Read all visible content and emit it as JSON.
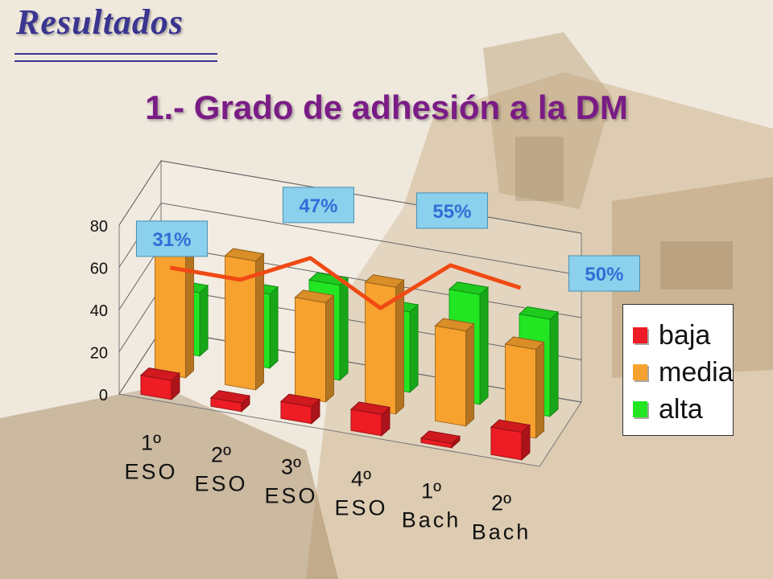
{
  "slide": {
    "heading": "Resultados"
  },
  "chart_data": {
    "type": "bar",
    "title": "1.- Grado de adhesión a la DM",
    "categories": [
      [
        "1º",
        "ESO"
      ],
      [
        "2º",
        "ESO"
      ],
      [
        "3º",
        "ESO"
      ],
      [
        "4º",
        "ESO"
      ],
      [
        "1º",
        "Bach"
      ],
      [
        "2º",
        "Bach"
      ]
    ],
    "series": [
      {
        "name": "baja",
        "color": "#ee1c24",
        "values": [
          9,
          4,
          8,
          10,
          2,
          13
        ]
      },
      {
        "name": "media",
        "color": "#f7a12e",
        "values": [
          66,
          61,
          47,
          60,
          45,
          42
        ]
      },
      {
        "name": "alta",
        "color": "#22e622",
        "values": [
          30,
          35,
          45,
          38,
          52,
          46
        ]
      }
    ],
    "ylim": [
      0,
      80
    ],
    "yticks": [
      0,
      20,
      40,
      60,
      80
    ],
    "grid": true,
    "legend_position": "right",
    "line_series": {
      "color": "#f04a14",
      "values": [
        31,
        31,
        47,
        29,
        55,
        50
      ]
    },
    "annotations": [
      "31%",
      "47%",
      "55%",
      "50%"
    ],
    "annotation_color": "#2e6fd6",
    "annotation_bg": "#8bd0ec"
  }
}
